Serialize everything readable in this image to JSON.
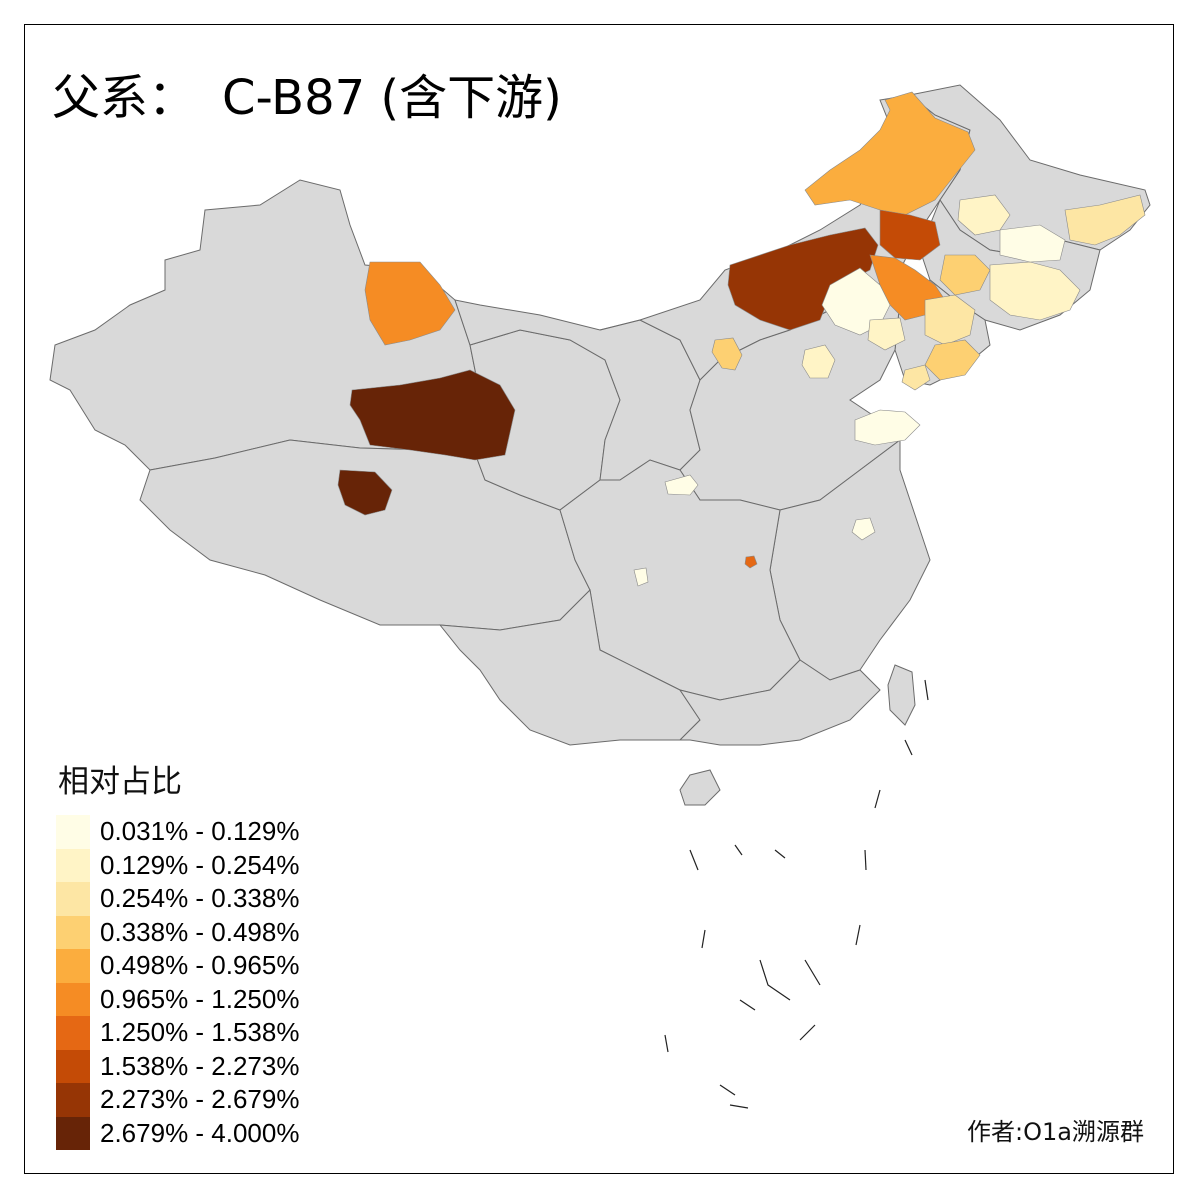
{
  "title": {
    "prefix": "父系：",
    "name": "C-B87 (含下游)"
  },
  "legend": {
    "title": "相对占比",
    "items": [
      {
        "label": "0.031% - 0.129%",
        "color": "#fffde6"
      },
      {
        "label": "0.129% - 0.254%",
        "color": "#fff4c6"
      },
      {
        "label": "0.254% - 0.338%",
        "color": "#fde6a4"
      },
      {
        "label": "0.338% - 0.498%",
        "color": "#fdd072"
      },
      {
        "label": "0.498% - 0.965%",
        "color": "#fbad3e"
      },
      {
        "label": "0.965% - 1.250%",
        "color": "#f58c24"
      },
      {
        "label": "1.250% - 1.538%",
        "color": "#e56814"
      },
      {
        "label": "1.538% - 2.273%",
        "color": "#c44b06"
      },
      {
        "label": "2.273% - 2.679%",
        "color": "#963505"
      },
      {
        "label": "2.679% - 4.000%",
        "color": "#672407"
      }
    ]
  },
  "credit": "作者:O1a溯源群",
  "colors": {
    "background": "#ffffff",
    "no_data": "#d9d9d9",
    "border": "#6b6b6b"
  }
}
